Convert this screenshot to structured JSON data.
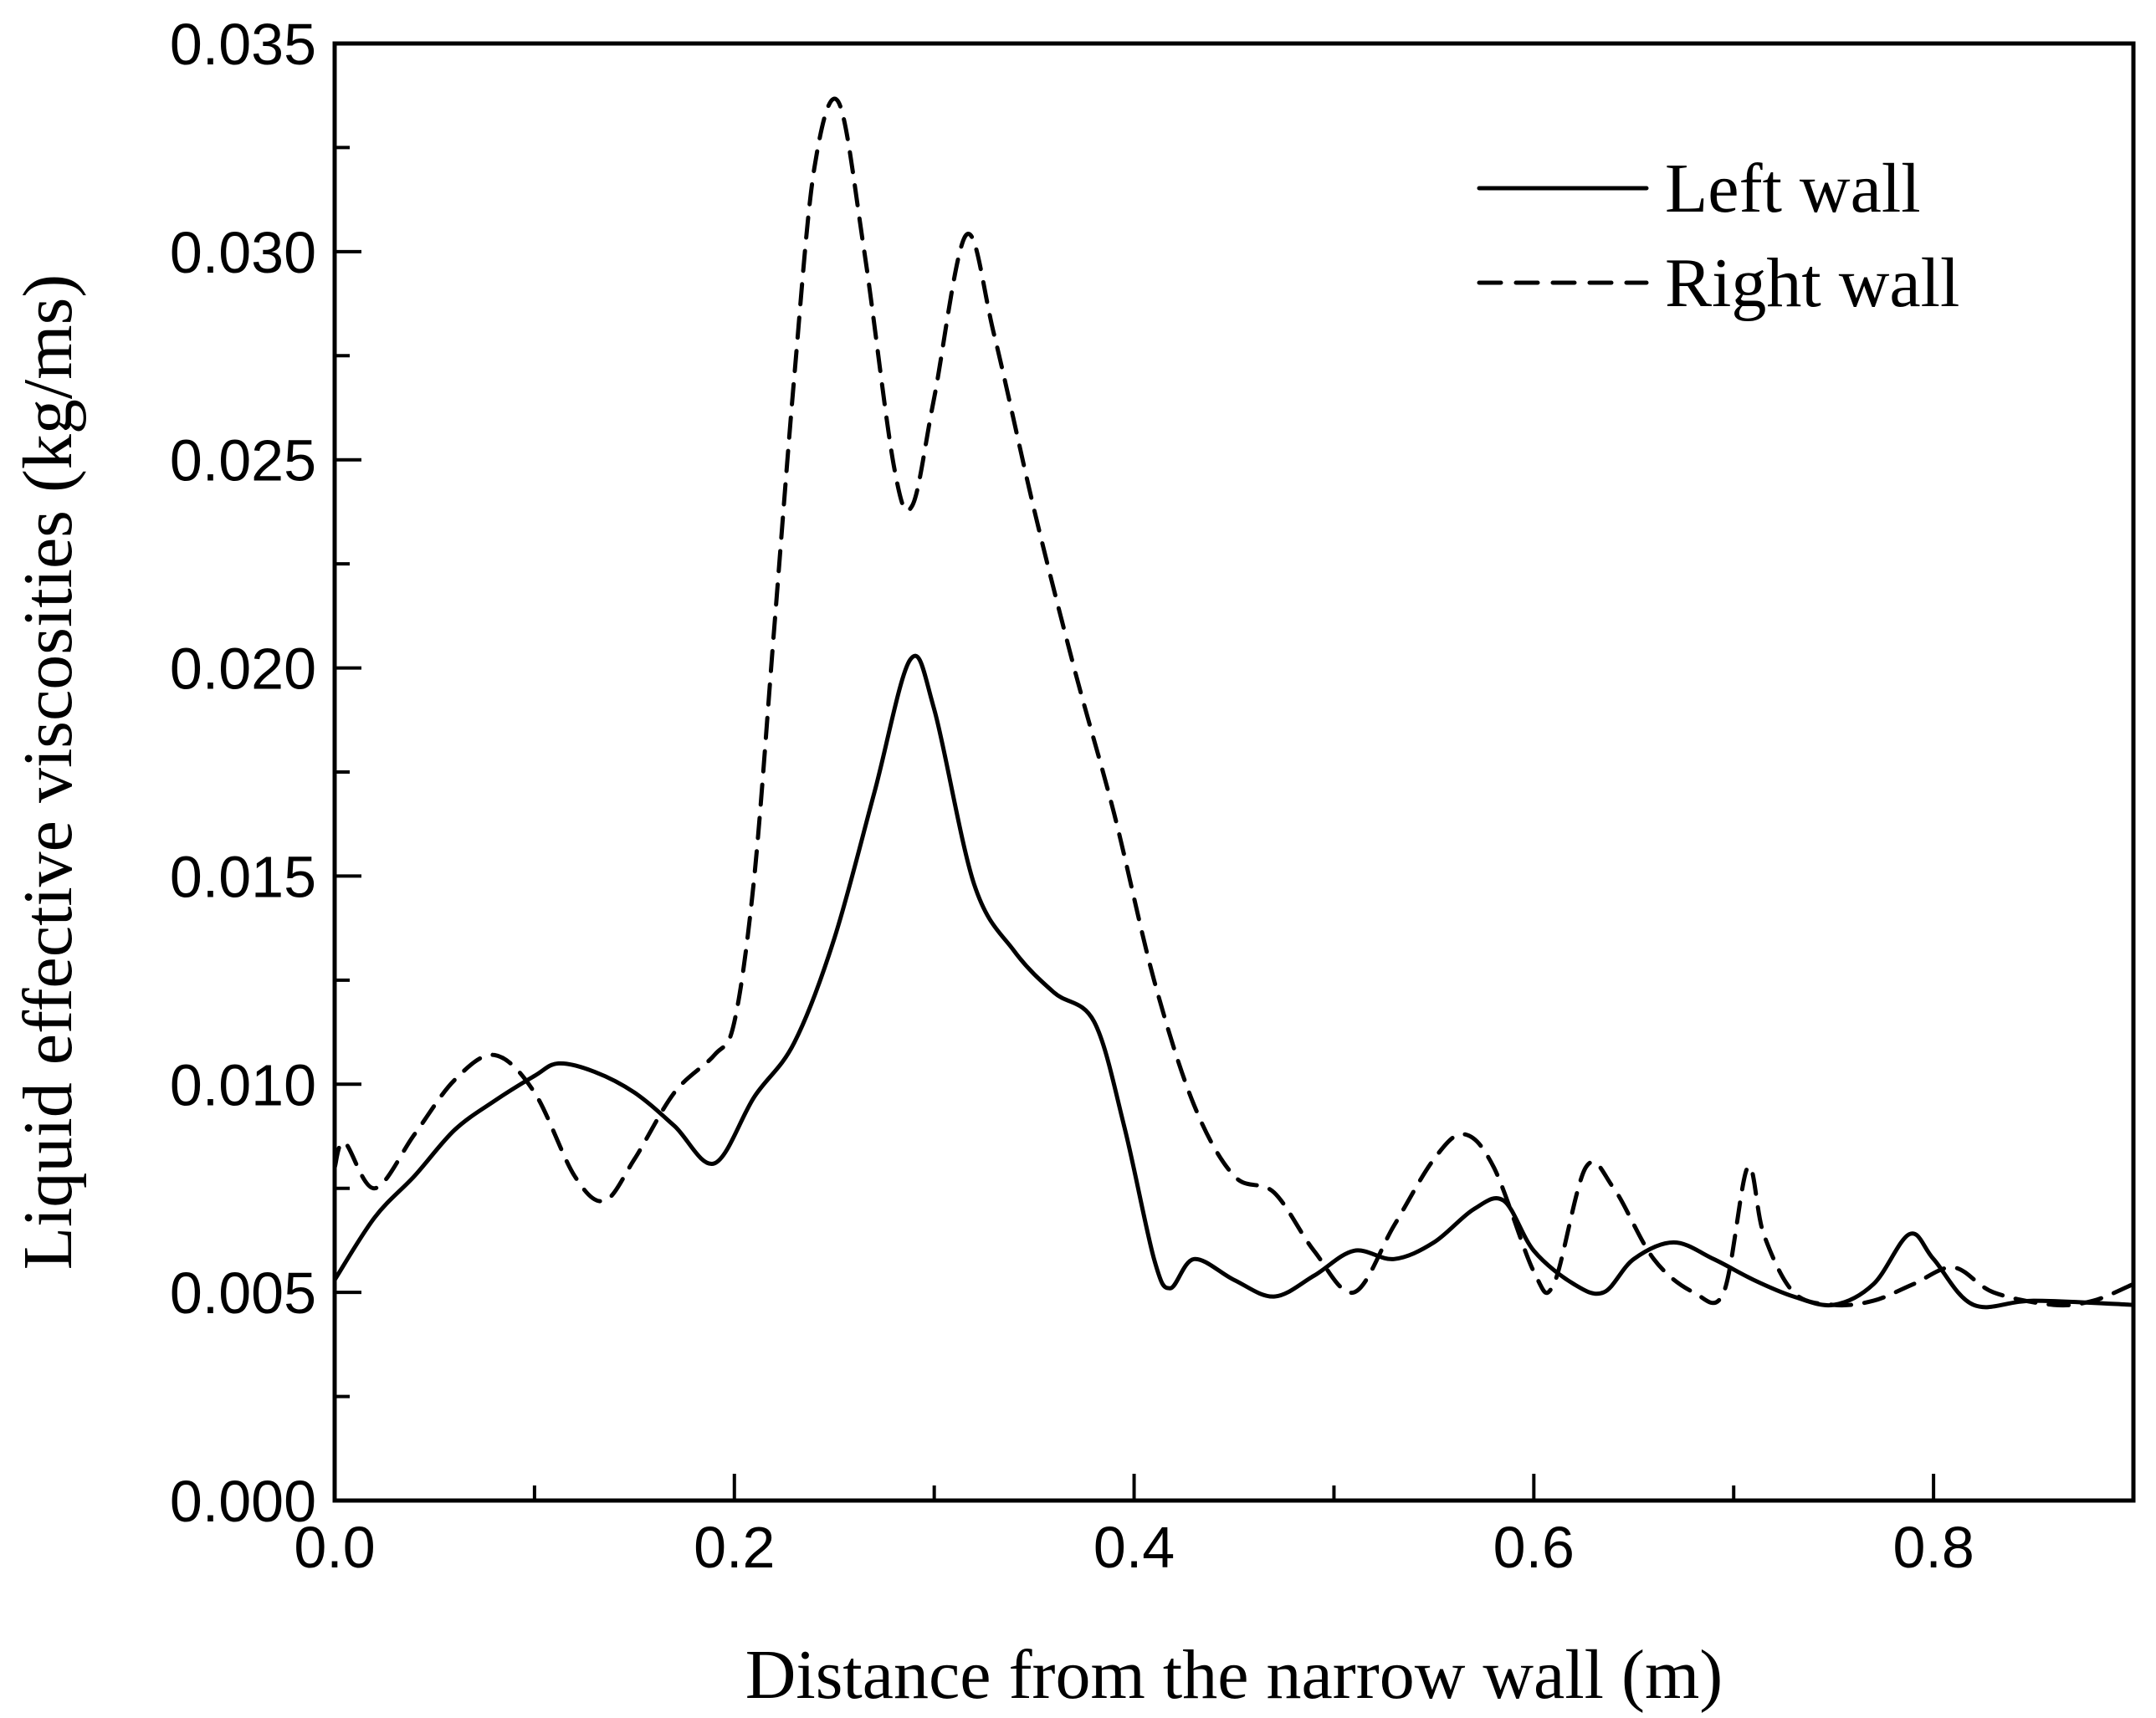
{
  "chart_data": {
    "type": "line",
    "title": "",
    "xlabel": "Distance from the narrow wall (m)",
    "ylabel": "Liquid effective viscosities (kg/ms)",
    "xlim": [
      0.0,
      0.9
    ],
    "ylim": [
      0.0,
      0.035
    ],
    "xticks": [
      0.0,
      0.2,
      0.4,
      0.6,
      0.8
    ],
    "xtick_labels": [
      "0.0",
      "0.2",
      "0.4",
      "0.6",
      "0.8"
    ],
    "yticks": [
      0.0,
      0.005,
      0.01,
      0.015,
      0.02,
      0.025,
      0.03,
      0.035
    ],
    "ytick_labels": [
      "0.000",
      "0.005",
      "0.010",
      "0.015",
      "0.020",
      "0.025",
      "0.030",
      "0.035"
    ],
    "grid": false,
    "legend_position": "top-right",
    "series": [
      {
        "name": "Left wall",
        "style": "solid",
        "x": [
          0.0,
          0.02,
          0.04,
          0.06,
          0.08,
          0.1,
          0.112,
          0.13,
          0.15,
          0.17,
          0.19,
          0.21,
          0.23,
          0.25,
          0.27,
          0.288,
          0.3,
          0.32,
          0.34,
          0.36,
          0.38,
          0.395,
          0.41,
          0.418,
          0.43,
          0.45,
          0.47,
          0.49,
          0.51,
          0.53,
          0.55,
          0.57,
          0.585,
          0.6,
          0.62,
          0.635,
          0.65,
          0.67,
          0.69,
          0.71,
          0.73,
          0.75,
          0.77,
          0.788,
          0.8,
          0.82,
          0.85,
          0.9
        ],
        "y": [
          0.0053,
          0.0068,
          0.0078,
          0.0089,
          0.0096,
          0.0102,
          0.0105,
          0.0103,
          0.0098,
          0.009,
          0.0081,
          0.0097,
          0.011,
          0.0135,
          0.017,
          0.0202,
          0.019,
          0.0148,
          0.0132,
          0.0122,
          0.0115,
          0.009,
          0.0058,
          0.0051,
          0.0058,
          0.0053,
          0.0049,
          0.0054,
          0.006,
          0.0058,
          0.0062,
          0.007,
          0.0072,
          0.006,
          0.0052,
          0.005,
          0.0058,
          0.0062,
          0.0058,
          0.0053,
          0.0049,
          0.0047,
          0.0052,
          0.0064,
          0.0058,
          0.0047,
          0.0048,
          0.0047
        ]
      },
      {
        "name": "Right wall",
        "style": "dashed",
        "x": [
          0.0,
          0.005,
          0.02,
          0.04,
          0.06,
          0.08,
          0.1,
          0.12,
          0.135,
          0.15,
          0.17,
          0.19,
          0.2,
          0.21,
          0.22,
          0.23,
          0.24,
          0.252,
          0.265,
          0.28,
          0.289,
          0.3,
          0.316,
          0.33,
          0.35,
          0.37,
          0.39,
          0.41,
          0.43,
          0.45,
          0.47,
          0.49,
          0.51,
          0.53,
          0.55,
          0.565,
          0.58,
          0.6,
          0.61,
          0.626,
          0.64,
          0.66,
          0.68,
          0.695,
          0.707,
          0.715,
          0.73,
          0.75,
          0.77,
          0.79,
          0.81,
          0.83,
          0.86,
          0.88,
          0.9
        ],
        "y": [
          0.008,
          0.0086,
          0.0075,
          0.0088,
          0.0101,
          0.0107,
          0.0098,
          0.0078,
          0.0072,
          0.0082,
          0.0098,
          0.0107,
          0.0115,
          0.015,
          0.021,
          0.027,
          0.032,
          0.0336,
          0.03,
          0.0248,
          0.0239,
          0.0265,
          0.0304,
          0.028,
          0.0238,
          0.02,
          0.0165,
          0.0125,
          0.0095,
          0.0078,
          0.0074,
          0.006,
          0.005,
          0.0066,
          0.0082,
          0.0088,
          0.008,
          0.0055,
          0.0052,
          0.008,
          0.0075,
          0.0058,
          0.005,
          0.005,
          0.008,
          0.0064,
          0.005,
          0.0047,
          0.0048,
          0.0052,
          0.0056,
          0.005,
          0.0047,
          0.0048,
          0.0052
        ]
      }
    ]
  }
}
